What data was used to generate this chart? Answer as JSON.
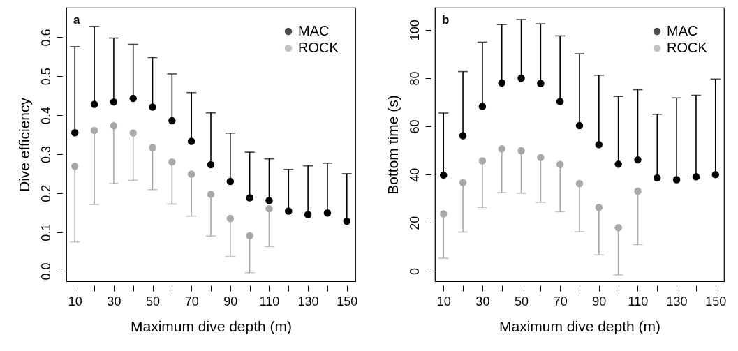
{
  "chart_data": [
    {
      "type": "scatter",
      "title": "a",
      "xlabel": "Maximum dive depth (m)",
      "ylabel": "Dive efficiency",
      "x": [
        10,
        20,
        30,
        40,
        50,
        60,
        70,
        80,
        90,
        100,
        110,
        120,
        130,
        140,
        150
      ],
      "series": [
        {
          "name": "MAC",
          "color": "#000000",
          "values": [
            0.355,
            0.428,
            0.434,
            0.443,
            0.421,
            0.386,
            0.333,
            0.273,
            0.23,
            0.188,
            0.181,
            0.154,
            0.145,
            0.149,
            0.128
          ],
          "errors": [
            [
              0.355,
              0.576
            ],
            [
              0.428,
              0.628
            ],
            [
              0.434,
              0.598
            ],
            [
              0.443,
              0.582
            ],
            [
              0.421,
              0.548
            ],
            [
              0.386,
              0.506
            ],
            [
              0.333,
              0.458
            ],
            [
              0.273,
              0.406
            ],
            [
              0.23,
              0.354
            ],
            [
              0.188,
              0.305
            ],
            [
              0.181,
              0.288
            ],
            [
              0.154,
              0.261
            ],
            [
              0.145,
              0.27
            ],
            [
              0.149,
              0.277
            ],
            [
              0.128,
              0.25
            ]
          ]
        },
        {
          "name": "ROCK",
          "color": "#a8a8a8",
          "values": [
            0.269,
            0.361,
            0.373,
            0.354,
            0.317,
            0.28,
            0.249,
            0.197,
            0.135,
            0.091,
            0.16,
            null,
            null,
            null,
            null
          ],
          "errors": [
            [
              0.075,
              0.269
            ],
            [
              0.171,
              0.361
            ],
            [
              0.225,
              0.373
            ],
            [
              0.233,
              0.354
            ],
            [
              0.209,
              0.317
            ],
            [
              0.172,
              0.28
            ],
            [
              0.141,
              0.249
            ],
            [
              0.09,
              0.197
            ],
            [
              0.037,
              0.135
            ],
            [
              -0.004,
              0.091
            ],
            [
              0.063,
              0.16
            ],
            null,
            null,
            null,
            null
          ]
        }
      ],
      "xlim": [
        5.6,
        154.4
      ],
      "ylim": [
        -0.026,
        0.676
      ],
      "xticks": [
        10,
        {
          "value": 20,
          "label": null
        },
        30,
        {
          "value": 40,
          "label": null
        },
        50,
        {
          "value": 60,
          "label": null
        },
        70,
        {
          "value": 80,
          "label": null
        },
        90,
        {
          "value": 100,
          "label": null
        },
        110,
        {
          "value": 120,
          "label": null
        },
        130,
        {
          "value": 140,
          "label": null
        },
        150
      ],
      "yticks": [
        {
          "value": 0,
          "label": "0.0"
        },
        0.1,
        0.2,
        0.3,
        0.4,
        0.5,
        0.6
      ],
      "legend": "top right",
      "marker": "circle",
      "grid": false
    },
    {
      "type": "scatter",
      "title": "b",
      "xlabel": "Maximum dive depth (m)",
      "ylabel": "Bottom time (s)",
      "x": [
        10,
        20,
        30,
        40,
        50,
        60,
        70,
        80,
        90,
        100,
        110,
        120,
        130,
        140,
        150
      ],
      "series": [
        {
          "name": "MAC",
          "color": "#000000",
          "values": [
            39.8,
            56.1,
            68.3,
            78.0,
            80.0,
            77.8,
            70.3,
            60.3,
            52.4,
            44.3,
            46.1,
            38.6,
            37.9,
            39.1,
            40.0
          ],
          "errors": [
            [
              39.8,
              65.5
            ],
            [
              56.1,
              82.7
            ],
            [
              68.3,
              94.9
            ],
            [
              78.0,
              102.2
            ],
            [
              80.0,
              104.3
            ],
            [
              77.8,
              102.5
            ],
            [
              70.3,
              97.5
            ],
            [
              60.3,
              90.1
            ],
            [
              52.4,
              81.2
            ],
            [
              44.3,
              72.4
            ],
            [
              46.1,
              75.2
            ],
            [
              38.6,
              65.0
            ],
            [
              37.9,
              71.8
            ],
            [
              39.1,
              72.9
            ],
            [
              40.0,
              79.6
            ]
          ]
        },
        {
          "name": "ROCK",
          "color": "#a8a8a8",
          "values": [
            23.7,
            36.7,
            45.7,
            50.7,
            49.9,
            47.1,
            44.2,
            36.3,
            26.4,
            18.0,
            33.1,
            null,
            null,
            null,
            null
          ],
          "errors": [
            [
              5.3,
              23.7
            ],
            [
              16.2,
              36.7
            ],
            [
              26.4,
              45.7
            ],
            [
              32.5,
              50.7
            ],
            [
              32.3,
              49.9
            ],
            [
              28.5,
              47.1
            ],
            [
              24.6,
              44.2
            ],
            [
              16.3,
              36.3
            ],
            [
              6.7,
              26.4
            ],
            [
              -1.6,
              18.0
            ],
            [
              11.0,
              33.1
            ],
            null,
            null,
            null,
            null
          ]
        }
      ],
      "xlim": [
        5.6,
        154.4
      ],
      "ylim": [
        -4.2,
        109.2
      ],
      "xticks": [
        10,
        {
          "value": 20,
          "label": null
        },
        30,
        {
          "value": 40,
          "label": null
        },
        50,
        {
          "value": 60,
          "label": null
        },
        70,
        {
          "value": 80,
          "label": null
        },
        90,
        {
          "value": 100,
          "label": null
        },
        110,
        {
          "value": 120,
          "label": null
        },
        130,
        {
          "value": 140,
          "label": null
        },
        150
      ],
      "yticks": [
        0,
        20,
        40,
        60,
        80,
        100
      ],
      "legend": "top right",
      "marker": "circle",
      "grid": false
    }
  ]
}
